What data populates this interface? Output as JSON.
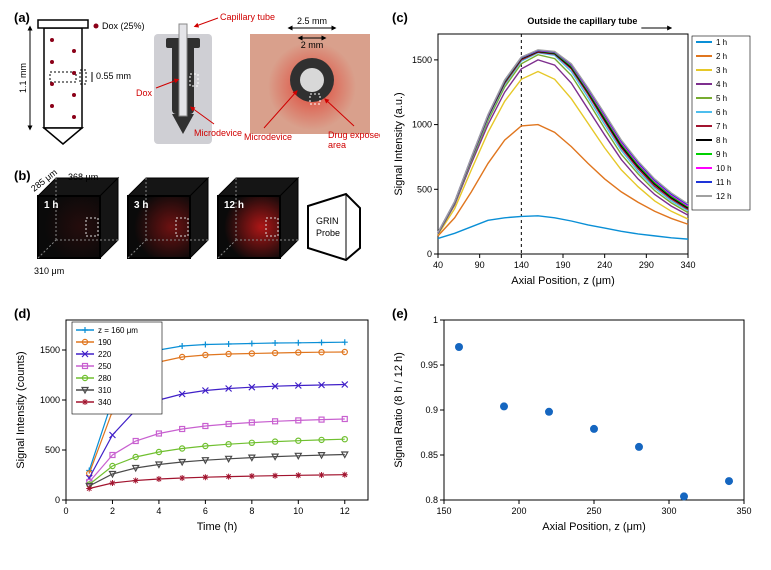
{
  "panel_letters": {
    "a": "(a)",
    "b": "(b)",
    "c": "(c)",
    "d": "(d)",
    "e": "(e)"
  },
  "panel_a": {
    "label_dox25": "Dox (25%)",
    "label_capillary": "Capillary tube",
    "label_dox": "Dox",
    "label_microdevice_side": "Microdevice",
    "label_microdevice_top": "Microdevice",
    "label_drug_area": "Drug exposed\n         area",
    "dim_height": "1.1 mm",
    "dim_hole": "0.55 mm",
    "dim_outer": "2.5 mm",
    "dim_inner": "2 mm",
    "dot_color": "#8b0018",
    "body_color": "#303030",
    "tissue_color": "#d9a08c",
    "red_stain": "#e0382a"
  },
  "panel_b": {
    "dims": {
      "x": "285 μm",
      "y": "368 μm",
      "z": "310 μm"
    },
    "time_labels": [
      "1 h",
      "3 h",
      "12 h"
    ],
    "grin_label": "GRIN\nProbe",
    "glow_color": "#c01818",
    "cube_bg": "#0a0a0a"
  },
  "panel_c": {
    "type": "line",
    "title_right": "Outside the capillary tube",
    "xlabel": "Axial Position, z (μm)",
    "ylabel": "Signal Intensity (a.u.)",
    "xlim": [
      40,
      340
    ],
    "ylim": [
      0,
      1700
    ],
    "xticks": [
      40,
      90,
      140,
      190,
      240,
      290,
      340
    ],
    "yticks": [
      0,
      500,
      1000,
      1500
    ],
    "x_dash": 140,
    "series": [
      {
        "label": "1 h",
        "color": "#0a8fd6",
        "x": [
          40,
          60,
          80,
          100,
          120,
          140,
          160,
          180,
          200,
          220,
          240,
          260,
          280,
          300,
          320,
          340
        ],
        "y": [
          120,
          160,
          210,
          260,
          280,
          290,
          295,
          280,
          255,
          225,
          200,
          175,
          155,
          140,
          125,
          115
        ]
      },
      {
        "label": "2 h",
        "color": "#e0761f",
        "x": [
          40,
          60,
          80,
          100,
          120,
          140,
          160,
          180,
          200,
          220,
          240,
          260,
          280,
          300,
          320,
          340
        ],
        "y": [
          140,
          280,
          480,
          700,
          880,
          990,
          1000,
          940,
          830,
          700,
          580,
          480,
          400,
          330,
          275,
          230
        ]
      },
      {
        "label": "3 h",
        "color": "#e6c828",
        "x": [
          40,
          60,
          80,
          100,
          120,
          140,
          160,
          180,
          200,
          220,
          240,
          260,
          280,
          300,
          320,
          340
        ],
        "y": [
          150,
          350,
          650,
          940,
          1180,
          1350,
          1410,
          1350,
          1200,
          1010,
          820,
          650,
          520,
          410,
          330,
          270
        ]
      },
      {
        "label": "4 h",
        "color": "#7e2f8e",
        "x": [
          40,
          60,
          80,
          100,
          120,
          140,
          160,
          180,
          200,
          220,
          240,
          260,
          280,
          300,
          320,
          340
        ],
        "y": [
          155,
          380,
          700,
          1000,
          1250,
          1430,
          1500,
          1460,
          1320,
          1120,
          920,
          730,
          580,
          460,
          370,
          300
        ]
      },
      {
        "label": "5 h",
        "color": "#77ac30",
        "x": [
          40,
          60,
          80,
          100,
          120,
          140,
          160,
          180,
          200,
          220,
          240,
          260,
          280,
          300,
          320,
          340
        ],
        "y": [
          158,
          390,
          720,
          1030,
          1290,
          1470,
          1540,
          1510,
          1380,
          1180,
          970,
          770,
          620,
          490,
          395,
          320
        ]
      },
      {
        "label": "6 h",
        "color": "#4dbeee",
        "x": [
          40,
          60,
          80,
          100,
          120,
          140,
          160,
          180,
          200,
          220,
          240,
          260,
          280,
          300,
          320,
          340
        ],
        "y": [
          160,
          395,
          730,
          1050,
          1310,
          1490,
          1555,
          1535,
          1410,
          1210,
          1000,
          800,
          640,
          510,
          410,
          335
        ]
      },
      {
        "label": "7 h",
        "color": "#a2142f",
        "x": [
          40,
          60,
          80,
          100,
          120,
          140,
          160,
          180,
          200,
          220,
          240,
          260,
          280,
          300,
          320,
          340
        ],
        "y": [
          162,
          398,
          735,
          1060,
          1320,
          1500,
          1560,
          1545,
          1430,
          1235,
          1025,
          820,
          660,
          525,
          425,
          345
        ]
      },
      {
        "label": "8 h",
        "color": "#000000",
        "x": [
          40,
          60,
          80,
          100,
          120,
          140,
          160,
          180,
          200,
          220,
          240,
          260,
          280,
          300,
          320,
          340
        ],
        "y": [
          163,
          400,
          740,
          1065,
          1330,
          1510,
          1565,
          1550,
          1440,
          1250,
          1040,
          835,
          675,
          540,
          435,
          355
        ]
      },
      {
        "label": "9 h",
        "color": "#00d000",
        "x": [
          40,
          60,
          80,
          100,
          120,
          140,
          160,
          180,
          200,
          220,
          240,
          260,
          280,
          300,
          320,
          340
        ],
        "y": [
          164,
          402,
          742,
          1070,
          1335,
          1515,
          1570,
          1555,
          1450,
          1260,
          1055,
          850,
          688,
          552,
          446,
          364
        ]
      },
      {
        "label": "10 h",
        "color": "#ff00ff",
        "x": [
          40,
          60,
          80,
          100,
          120,
          140,
          160,
          180,
          200,
          220,
          240,
          260,
          280,
          300,
          320,
          340
        ],
        "y": [
          165,
          403,
          744,
          1072,
          1340,
          1518,
          1572,
          1560,
          1460,
          1270,
          1068,
          862,
          700,
          563,
          456,
          372
        ]
      },
      {
        "label": "11 h",
        "color": "#1e34d8",
        "x": [
          40,
          60,
          80,
          100,
          120,
          140,
          160,
          180,
          200,
          220,
          240,
          260,
          280,
          300,
          320,
          340
        ],
        "y": [
          166,
          404,
          746,
          1075,
          1342,
          1520,
          1575,
          1562,
          1465,
          1278,
          1078,
          872,
          710,
          572,
          464,
          380
        ]
      },
      {
        "label": "12 h",
        "color": "#a0a0a0",
        "x": [
          40,
          60,
          80,
          100,
          120,
          140,
          160,
          180,
          200,
          220,
          240,
          260,
          280,
          300,
          320,
          340
        ],
        "y": [
          167,
          405,
          748,
          1077,
          1345,
          1522,
          1578,
          1565,
          1470,
          1285,
          1085,
          880,
          718,
          580,
          472,
          387
        ]
      }
    ]
  },
  "panel_d": {
    "type": "line",
    "xlabel": "Time (h)",
    "ylabel": "Signal Intensity (counts)",
    "xlim": [
      0,
      13
    ],
    "ylim": [
      0,
      1800
    ],
    "xticks": [
      0,
      2,
      4,
      6,
      8,
      10,
      12
    ],
    "yticks": [
      0,
      500,
      1000,
      1500
    ],
    "series": [
      {
        "label": "z = 160 μm",
        "color": "#0a8fd6",
        "marker": "+",
        "x": [
          1,
          2,
          3,
          4,
          5,
          6,
          7,
          8,
          9,
          10,
          11,
          12
        ],
        "y": [
          295,
          1000,
          1410,
          1500,
          1540,
          1555,
          1560,
          1565,
          1570,
          1572,
          1575,
          1578
        ]
      },
      {
        "label": "190",
        "color": "#e0761f",
        "marker": "o",
        "x": [
          1,
          2,
          3,
          4,
          5,
          6,
          7,
          8,
          9,
          10,
          11,
          12
        ],
        "y": [
          265,
          890,
          1270,
          1380,
          1430,
          1450,
          1460,
          1465,
          1470,
          1475,
          1478,
          1480
        ]
      },
      {
        "label": "220",
        "color": "#4020c8",
        "marker": "x",
        "x": [
          1,
          2,
          3,
          4,
          5,
          6,
          7,
          8,
          9,
          10,
          11,
          12
        ],
        "y": [
          220,
          650,
          900,
          1000,
          1060,
          1095,
          1115,
          1128,
          1138,
          1145,
          1150,
          1155
        ]
      },
      {
        "label": "250",
        "color": "#c860d0",
        "marker": "sq",
        "x": [
          1,
          2,
          3,
          4,
          5,
          6,
          7,
          8,
          9,
          10,
          11,
          12
        ],
        "y": [
          180,
          450,
          590,
          665,
          710,
          740,
          760,
          775,
          787,
          796,
          804,
          810
        ]
      },
      {
        "label": "280",
        "color": "#70c030",
        "marker": "o",
        "x": [
          1,
          2,
          3,
          4,
          5,
          6,
          7,
          8,
          9,
          10,
          11,
          12
        ],
        "y": [
          155,
          340,
          430,
          480,
          515,
          540,
          558,
          572,
          584,
          593,
          601,
          608
        ]
      },
      {
        "label": "310",
        "color": "#4a4a4a",
        "marker": "tri",
        "x": [
          1,
          2,
          3,
          4,
          5,
          6,
          7,
          8,
          9,
          10,
          11,
          12
        ],
        "y": [
          140,
          260,
          320,
          355,
          380,
          398,
          412,
          424,
          434,
          442,
          449,
          455
        ]
      },
      {
        "label": "340",
        "color": "#a2142f",
        "marker": "*",
        "x": [
          1,
          2,
          3,
          4,
          5,
          6,
          7,
          8,
          9,
          10,
          11,
          12
        ],
        "y": [
          115,
          170,
          195,
          210,
          220,
          228,
          234,
          239,
          243,
          247,
          250,
          253
        ]
      }
    ]
  },
  "panel_e": {
    "type": "scatter",
    "xlabel": "Axial Position, z (μm)",
    "ylabel": "Signal Ratio (8 h / 12 h)",
    "xlim": [
      150,
      350
    ],
    "ylim": [
      0.8,
      1.0
    ],
    "xticks": [
      150,
      200,
      250,
      300,
      350
    ],
    "yticks": [
      0.8,
      0.85,
      0.9,
      0.95,
      1
    ],
    "marker_color": "#1566c0",
    "points": [
      {
        "x": 160,
        "y": 0.97
      },
      {
        "x": 190,
        "y": 0.904
      },
      {
        "x": 220,
        "y": 0.898
      },
      {
        "x": 250,
        "y": 0.879
      },
      {
        "x": 280,
        "y": 0.859
      },
      {
        "x": 310,
        "y": 0.804
      },
      {
        "x": 340,
        "y": 0.821
      }
    ]
  }
}
